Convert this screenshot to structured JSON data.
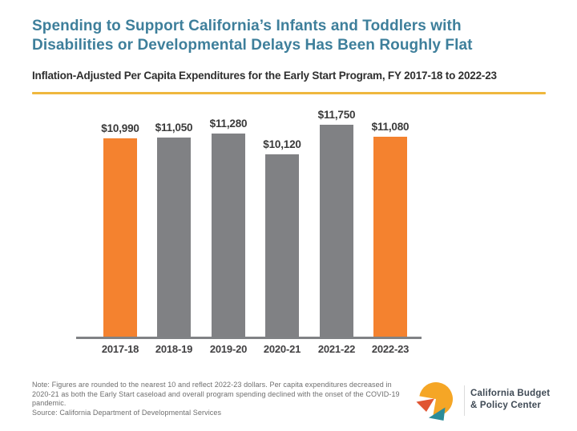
{
  "header": {
    "title": "Spending to Support California’s Infants and Toddlers with Disabilities or Developmental Delays Has Been Roughly Flat",
    "title_lines": [
      "Spending to Support California’s Infants and Toddlers with",
      "Disabilities or Developmental Delays Has Been Roughly Flat"
    ],
    "subtitle": "Inflation-Adjusted Per Capita Expenditures for the Early Start Program, FY 2017-18 to 2022-23",
    "title_color": "#3E7F9B",
    "divider_color": "#EFB73D"
  },
  "chart_data": {
    "type": "bar",
    "title": "Inflation-Adjusted Per Capita Expenditures for the Early Start Program, FY 2017-18 to 2022-23",
    "categories": [
      "2017-18",
      "2018-19",
      "2019-20",
      "2020-21",
      "2021-22",
      "2022-23"
    ],
    "values": [
      10990,
      11050,
      11280,
      10120,
      11750,
      11080
    ],
    "value_labels": [
      "$10,990",
      "$11,050",
      "$11,280",
      "$10,120",
      "$11,750",
      "$11,080"
    ],
    "bar_colors": [
      "#F4822F",
      "#808184",
      "#808184",
      "#808184",
      "#808184",
      "#F4822F"
    ],
    "highlight_color": "#F4822F",
    "default_color": "#808184",
    "ylabel": "",
    "xlabel": "",
    "ylim": [
      0,
      11750
    ],
    "grid": false,
    "legend": false,
    "baseline_color": "#808285",
    "value_labels_position": "above-bars"
  },
  "footer": {
    "note": "Note: Figures are rounded to the nearest 10 and reflect 2022-23 dollars. Per capita expenditures decreased in 2020-21 as both the Early Start caseload and overall program spending declined with the onset of the COVID-19 pandemic.",
    "source": "Source: California Department of Developmental Services",
    "logo": {
      "line1": "California Budget",
      "line2": "& Policy Center",
      "mark_yellow": "#F5A626",
      "mark_red": "#E05532",
      "mark_teal": "#2B8C99",
      "text_color": "#3F4A55"
    }
  }
}
